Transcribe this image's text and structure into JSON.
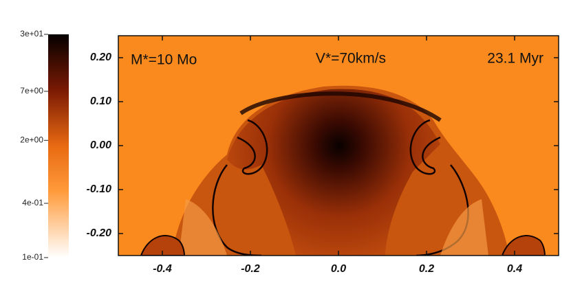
{
  "chart_data": {
    "type": "heatmap",
    "annotations": [
      "M*=10 Mo",
      "V*=70km/s",
      "23.1 Myr"
    ],
    "xlim": [
      -0.5,
      0.5
    ],
    "xticks": [
      -0.4,
      -0.2,
      {
        "value": 0,
        "label": "0.0"
      },
      0.2,
      0.4
    ],
    "ylim": [
      -0.25,
      0.25
    ],
    "yticks": [
      {
        "value": 0.2,
        "label": "0.20"
      },
      {
        "value": 0.1,
        "label": "0.10"
      },
      {
        "value": 0,
        "label": "0.00"
      },
      {
        "value": -0.1,
        "label": "-0.10"
      },
      {
        "value": -0.2,
        "label": "-0.20"
      }
    ],
    "colorbar": {
      "log": true,
      "lim": [
        0.1,
        30
      ],
      "ticks": [
        {
          "value": 30,
          "label": "3e+01"
        },
        {
          "value": 7,
          "label": "7e+00"
        },
        {
          "value": 2,
          "label": "2e+00"
        },
        {
          "value": 0.4,
          "label": "4e-01"
        },
        {
          "value": 0.1,
          "label": "1e-01"
        }
      ]
    }
  }
}
